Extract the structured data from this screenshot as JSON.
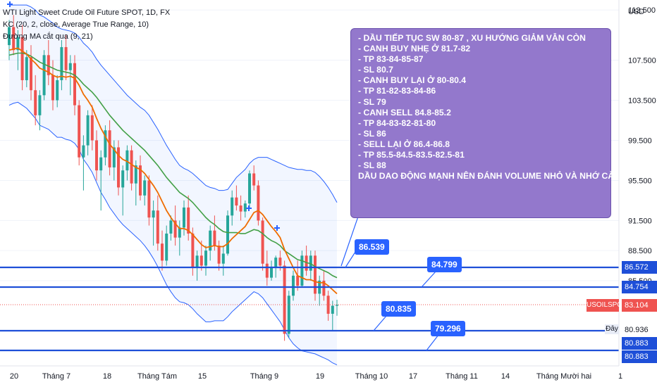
{
  "legend": {
    "line1": "WTI Light Sweet Crude Oil Future SPOT, 1D, FX",
    "line2": "KC (20, 2, close, Average True Range, 10)",
    "line3": "Đường MA cắt qua (9, 21)"
  },
  "note_lines": [
    "- DẦU TIẾP TỤC SW 80-87 , XU HƯỚNG GIẢM VẪN CÒN",
    "- CANH BUY NHẸ Ở 81.7-82",
    "- TP 83-84-85-87",
    "- SL 80.7",
    "- CANH BUY LẠI Ở 80-80.4",
    "- TP 81-82-83-84-86",
    "- SL 79",
    "- CANH SELL 84.8-85.2",
    "- TP 84-83-82-81-80",
    "- SL 86",
    "- SELL LẠI Ở 86.4-86.8",
    "- TP 85.5-84.5-83.5-82.5-81",
    "- SL 88",
    "DẦU DAO ĐỘNG MẠNH NÊN ĐÁNH VOLUME NHỎ VÀ NHỚ CÀI SL"
  ],
  "callouts": {
    "c1": "86.539",
    "c2": "84.799",
    "c3": "80.835",
    "c4": "79.296"
  },
  "axis_tags": {
    "h1": "86.572",
    "h2": "84.754",
    "symbol": "USOILSPOT",
    "price": "83.104",
    "day_label": "Đây",
    "h3": "80.936",
    "h4": "80.883",
    "h5": "80.883"
  },
  "colors": {
    "up": "#26a69a",
    "down": "#ef5350",
    "ma_fast": "#ef6c00",
    "ma_slow": "#43a047",
    "channel": "#2962ff",
    "hline": "#1e4fd8",
    "note_bg": "#9378cc"
  },
  "chart_data": {
    "type": "candlestick",
    "currency": "USD",
    "y_ticks": [
      112.5,
      107.5,
      103.5,
      99.5,
      95.5,
      91.5,
      88.5,
      85.5
    ],
    "ylim": [
      77.0,
      113.5
    ],
    "x_ticks": [
      "20",
      "Tháng 7",
      "18",
      "Tháng Tám",
      "15",
      "Tháng 9",
      "19",
      "Tháng 10",
      "17",
      "Tháng 11",
      "14",
      "Tháng Mười hai",
      "1"
    ],
    "horizontal_levels": [
      86.572,
      84.754,
      80.936,
      80.883,
      80.883
    ],
    "last_price": 83.104,
    "candles": [
      [
        109.0,
        111.5,
        107.5,
        110.8
      ],
      [
        110.8,
        112.0,
        108.0,
        108.5
      ],
      [
        108.5,
        110.5,
        106.5,
        109.8
      ],
      [
        109.8,
        111.0,
        104.5,
        105.5
      ],
      [
        105.5,
        108.5,
        104.8,
        107.8
      ],
      [
        107.8,
        109.0,
        103.5,
        104.5
      ],
      [
        104.5,
        106.0,
        101.0,
        102.0
      ],
      [
        102.0,
        104.5,
        100.5,
        104.0
      ],
      [
        104.0,
        108.5,
        103.5,
        108.0
      ],
      [
        108.0,
        109.5,
        105.0,
        106.0
      ],
      [
        106.0,
        107.5,
        102.5,
        103.5
      ],
      [
        103.5,
        106.0,
        102.8,
        105.5
      ],
      [
        105.5,
        109.5,
        104.5,
        108.8
      ],
      [
        108.8,
        110.0,
        105.5,
        106.5
      ],
      [
        106.5,
        108.0,
        104.0,
        107.2
      ],
      [
        107.2,
        108.0,
        102.0,
        103.0
      ],
      [
        103.0,
        103.5,
        97.0,
        97.8
      ],
      [
        97.8,
        100.0,
        94.5,
        99.0
      ],
      [
        99.0,
        102.5,
        98.0,
        102.0
      ],
      [
        102.0,
        103.0,
        98.5,
        99.5
      ],
      [
        99.5,
        100.5,
        95.5,
        96.5
      ],
      [
        96.5,
        98.5,
        92.5,
        97.8
      ],
      [
        97.8,
        101.0,
        97.0,
        100.5
      ],
      [
        100.5,
        101.5,
        96.0,
        96.8
      ],
      [
        96.8,
        99.5,
        95.5,
        98.8
      ],
      [
        98.8,
        99.5,
        94.0,
        94.8
      ],
      [
        94.8,
        97.0,
        92.0,
        96.5
      ],
      [
        96.5,
        99.0,
        95.5,
        98.5
      ],
      [
        98.5,
        99.0,
        94.5,
        95.2
      ],
      [
        95.2,
        97.5,
        93.0,
        97.0
      ],
      [
        97.0,
        98.0,
        93.5,
        94.0
      ],
      [
        94.0,
        96.0,
        93.0,
        95.5
      ],
      [
        95.5,
        96.0,
        91.0,
        91.8
      ],
      [
        91.8,
        93.5,
        89.0,
        92.5
      ],
      [
        92.5,
        94.0,
        88.5,
        89.2
      ],
      [
        89.2,
        90.5,
        86.5,
        87.5
      ],
      [
        87.5,
        91.0,
        87.0,
        90.2
      ],
      [
        90.2,
        92.0,
        89.5,
        91.5
      ],
      [
        91.5,
        93.0,
        89.0,
        89.8
      ],
      [
        89.8,
        91.5,
        88.0,
        90.8
      ],
      [
        90.8,
        93.5,
        90.0,
        92.8
      ],
      [
        92.8,
        94.0,
        89.5,
        90.2
      ],
      [
        90.2,
        90.8,
        86.0,
        86.8
      ],
      [
        86.8,
        88.5,
        85.5,
        88.0
      ],
      [
        88.0,
        89.5,
        86.5,
        87.0
      ],
      [
        87.0,
        89.0,
        86.0,
        88.5
      ],
      [
        88.5,
        91.0,
        87.5,
        90.5
      ],
      [
        90.5,
        92.0,
        88.5,
        89.0
      ],
      [
        89.0,
        89.5,
        86.5,
        87.2
      ],
      [
        87.2,
        89.0,
        86.0,
        88.2
      ],
      [
        88.2,
        92.5,
        88.0,
        92.0
      ],
      [
        92.0,
        94.5,
        91.0,
        93.8
      ],
      [
        93.8,
        95.0,
        92.5,
        93.0
      ],
      [
        93.0,
        94.0,
        91.5,
        92.4
      ],
      [
        92.4,
        93.5,
        91.8,
        93.2
      ],
      [
        93.2,
        96.5,
        92.8,
        96.2
      ],
      [
        96.2,
        97.0,
        94.5,
        95.0
      ],
      [
        95.0,
        95.5,
        91.0,
        91.5
      ],
      [
        91.5,
        91.8,
        86.5,
        87.2
      ],
      [
        87.2,
        88.5,
        85.0,
        85.8
      ],
      [
        85.8,
        87.5,
        85.5,
        86.8
      ],
      [
        86.8,
        88.0,
        85.8,
        87.8
      ],
      [
        87.8,
        88.5,
        86.5,
        87.0
      ],
      [
        87.0,
        87.5,
        79.5,
        80.2
      ],
      [
        80.2,
        84.5,
        79.8,
        84.0
      ],
      [
        84.0,
        86.5,
        83.5,
        86.0
      ],
      [
        86.0,
        87.5,
        84.5,
        85.0
      ],
      [
        85.0,
        88.5,
        84.8,
        88.0
      ],
      [
        88.0,
        89.0,
        86.0,
        86.5
      ],
      [
        86.5,
        88.5,
        85.5,
        88.0
      ],
      [
        88.0,
        88.5,
        83.5,
        84.2
      ],
      [
        84.2,
        86.0,
        83.0,
        85.5
      ],
      [
        85.5,
        86.5,
        83.5,
        84.0
      ],
      [
        84.0,
        84.5,
        81.5,
        82.2
      ],
      [
        82.2,
        83.5,
        80.5,
        83.0
      ],
      [
        83.0,
        83.6,
        82.0,
        83.1
      ]
    ],
    "ma_fast": [
      108.5,
      108.6,
      108.7,
      108.4,
      108.1,
      107.6,
      107.2,
      106.7,
      106.5,
      106.3,
      106.0,
      105.8,
      105.9,
      105.8,
      105.9,
      105.7,
      105.0,
      104.1,
      103.5,
      102.8,
      101.7,
      100.7,
      99.9,
      99.1,
      98.6,
      98.0,
      97.6,
      97.4,
      97.1,
      96.8,
      96.6,
      96.2,
      95.6,
      95.0,
      94.3,
      93.4,
      92.5,
      91.8,
      91.2,
      90.7,
      90.7,
      90.5,
      90.1,
      89.6,
      89.1,
      88.8,
      88.9,
      89.0,
      88.9,
      88.9,
      89.2,
      89.7,
      90.1,
      90.5,
      90.9,
      91.6,
      92.3,
      92.5,
      92.1,
      91.5,
      90.9,
      90.4,
      89.8,
      88.6,
      87.7,
      86.8,
      86.0,
      85.8,
      85.6,
      85.6,
      85.4,
      85.3,
      85.3,
      85.0,
      84.6,
      84.2
    ],
    "ma_slow": [
      108.0,
      108.1,
      108.2,
      108.2,
      108.1,
      107.9,
      107.6,
      107.3,
      107.1,
      106.9,
      106.7,
      106.5,
      106.4,
      106.3,
      106.2,
      106.0,
      105.6,
      105.1,
      104.7,
      104.3,
      103.8,
      103.2,
      102.6,
      102.0,
      101.5,
      101.0,
      100.5,
      100.1,
      99.7,
      99.3,
      98.9,
      98.5,
      98.0,
      97.5,
      97.0,
      96.4,
      95.8,
      95.3,
      94.8,
      94.3,
      94.0,
      93.7,
      93.3,
      92.8,
      92.3,
      91.8,
      91.4,
      91.1,
      90.7,
      90.4,
      90.3,
      90.3,
      90.3,
      90.2,
      90.2,
      90.4,
      90.6,
      90.5,
      90.2,
      89.8,
      89.5,
      89.3,
      89.0,
      88.5,
      88.2,
      87.9,
      87.6,
      87.5,
      87.3,
      87.2,
      86.9,
      86.7,
      86.5,
      86.3,
      86.0,
      85.8
    ],
    "channel_upper": [
      113.0,
      113.0,
      113.0,
      113.0,
      113.0,
      112.8,
      112.5,
      112.0,
      111.8,
      111.5,
      111.2,
      110.8,
      110.6,
      110.5,
      110.4,
      110.2,
      109.8,
      109.2,
      108.8,
      108.3,
      107.6,
      107.0,
      106.5,
      106.0,
      105.5,
      105.0,
      104.5,
      104.0,
      103.6,
      103.2,
      102.8,
      102.5,
      102.0,
      101.3,
      100.6,
      99.8,
      99.0,
      98.3,
      97.6,
      97.0,
      96.7,
      96.5,
      96.2,
      95.8,
      95.4,
      95.0,
      94.8,
      94.7,
      94.5,
      94.5,
      94.6,
      95.2,
      95.8,
      96.2,
      96.6,
      97.2,
      97.6,
      97.8,
      97.8,
      97.8,
      97.6,
      97.4,
      97.2,
      97.0,
      96.8,
      96.7,
      96.6,
      96.6,
      96.5,
      96.5,
      96.3,
      95.9,
      95.4,
      94.8,
      94.1,
      93.3
    ],
    "channel_lower": [
      103.0,
      103.2,
      103.3,
      103.0,
      102.7,
      102.2,
      101.7,
      101.0,
      100.8,
      100.6,
      100.2,
      99.8,
      99.8,
      99.6,
      99.5,
      99.2,
      98.6,
      97.6,
      97.0,
      96.3,
      95.3,
      94.3,
      93.6,
      92.8,
      92.2,
      91.6,
      91.1,
      90.7,
      90.3,
      89.9,
      89.5,
      89.0,
      88.4,
      87.7,
      86.9,
      86.0,
      85.1,
      84.4,
      83.8,
      83.4,
      83.3,
      83.1,
      82.7,
      82.2,
      81.8,
      81.4,
      81.4,
      81.5,
      81.5,
      81.5,
      81.9,
      82.4,
      82.8,
      83.2,
      83.6,
      84.0,
      84.4,
      84.2,
      83.8,
      83.2,
      82.6,
      82.0,
      81.4,
      80.6,
      79.8,
      79.2,
      78.8,
      78.5,
      78.4,
      78.3,
      78.2,
      78.0,
      77.8,
      77.6,
      77.3,
      77.1
    ]
  }
}
